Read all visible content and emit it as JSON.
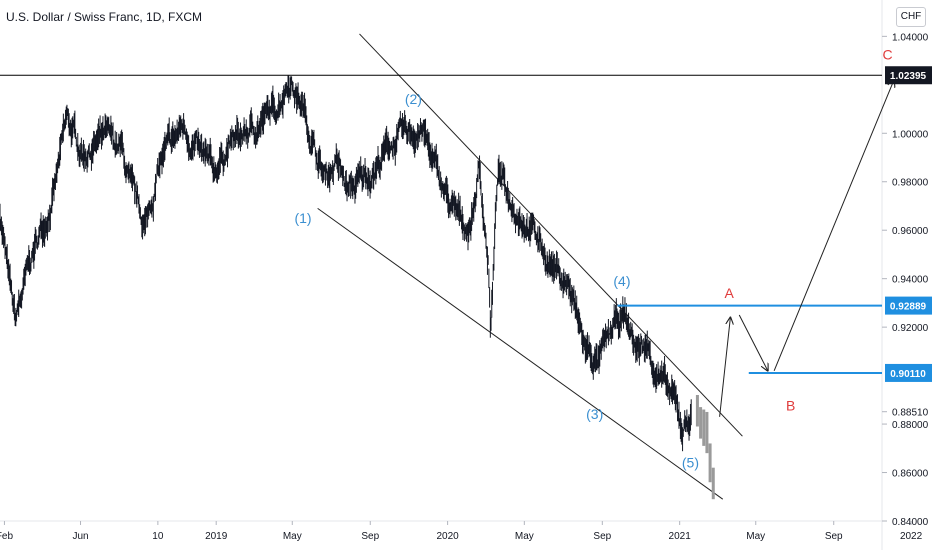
{
  "header": {
    "symbol_title": "U.S. Dollar / Swiss Franc, 1D, FXCM",
    "currency_button": "CHF"
  },
  "colors": {
    "price_bars": "#131722",
    "projection_bars": "#9a9a9a",
    "wave_labels": "#3b8fd0",
    "abc_labels": "#e03c3c",
    "blue_levels": "#1f8fe0",
    "resistance_line": "#000000",
    "tag_background": "#131722"
  },
  "chart_data": {
    "type": "line",
    "symbol": "USDCHF",
    "timeframe": "1D",
    "x_tick_labels": [
      "Feb",
      "Jun",
      "10",
      "2019",
      "May",
      "Sep",
      "2020",
      "May",
      "Sep",
      "2021",
      "May",
      "Sep",
      "2022"
    ],
    "y_tick_labels": [
      "1.04000",
      "1.00000",
      "0.98000",
      "0.96000",
      "0.94000",
      "0.92000",
      "0.88510",
      "0.88000",
      "0.86000",
      "0.84000"
    ],
    "y_range": [
      0.84,
      1.055
    ],
    "price_path": [
      [
        "2018-01-25",
        0.968
      ],
      [
        "2018-02-10",
        0.935
      ],
      [
        "2018-02-18",
        0.922
      ],
      [
        "2018-03-15",
        0.948
      ],
      [
        "2018-04-20",
        0.975
      ],
      [
        "2018-05-10",
        1.005
      ],
      [
        "2018-06-05",
        0.992
      ],
      [
        "2018-07-10",
        0.998
      ],
      [
        "2018-08-05",
        0.993
      ],
      [
        "2018-08-20",
        0.975
      ],
      [
        "2018-09-12",
        0.962
      ],
      [
        "2018-10-05",
        0.988
      ],
      [
        "2018-11-10",
        1.003
      ],
      [
        "2018-12-08",
        0.99
      ],
      [
        "2018-12-28",
        0.984
      ],
      [
        "2019-01-20",
        0.995
      ],
      [
        "2019-02-25",
        1.001
      ],
      [
        "2019-04-05",
        1.01
      ],
      [
        "2019-04-26",
        1.0235
      ],
      [
        "2019-05-20",
        1.009
      ],
      [
        "2019-06-05",
        0.994
      ],
      [
        "2019-06-20",
        0.982
      ],
      [
        "2019-07-10",
        0.988
      ],
      [
        "2019-07-28",
        0.976
      ],
      [
        "2019-08-15",
        0.98
      ],
      [
        "2019-09-10",
        0.986
      ],
      [
        "2019-10-01",
        0.995
      ],
      [
        "2019-10-25",
        0.999
      ],
      [
        "2019-11-22",
        1.002
      ],
      [
        "2019-12-10",
        0.987
      ],
      [
        "2020-01-10",
        0.967
      ],
      [
        "2020-02-05",
        0.961
      ],
      [
        "2020-02-20",
        0.985
      ],
      [
        "2020-03-05",
        0.948
      ],
      [
        "2020-03-09",
        0.918
      ],
      [
        "2020-03-20",
        0.984
      ],
      [
        "2020-04-10",
        0.972
      ],
      [
        "2020-05-10",
        0.962
      ],
      [
        "2020-06-10",
        0.947
      ],
      [
        "2020-07-10",
        0.937
      ],
      [
        "2020-08-05",
        0.911
      ],
      [
        "2020-08-25",
        0.905
      ],
      [
        "2020-09-20",
        0.92
      ],
      [
        "2020-10-05",
        0.925
      ],
      [
        "2020-10-25",
        0.911
      ],
      [
        "2020-11-10",
        0.912
      ],
      [
        "2020-12-05",
        0.897
      ],
      [
        "2020-12-25",
        0.888
      ],
      [
        "2021-01-06",
        0.878
      ],
      [
        "2021-01-20",
        0.885
      ]
    ],
    "projection_bars": [
      [
        "2021-01-29",
        0.892,
        0.879
      ],
      [
        "2021-02-03",
        0.887,
        0.874
      ],
      [
        "2021-02-08",
        0.886,
        0.871
      ],
      [
        "2021-02-13",
        0.885,
        0.868
      ],
      [
        "2021-02-18",
        0.872,
        0.856
      ],
      [
        "2021-02-23",
        0.862,
        0.849
      ]
    ],
    "resistance_level": {
      "value": 1.02395,
      "label": "1.02395"
    },
    "levels": [
      {
        "value": 0.92889,
        "label": "0.92889",
        "from": "2020-09-25"
      },
      {
        "value": 0.9011,
        "label": "0.90110",
        "from": "2021-04-20"
      }
    ],
    "channel_lines": [
      {
        "from": [
          "2019-06-10",
          0.969
        ],
        "to": [
          "2021-03-10",
          0.849
        ]
      },
      {
        "from": [
          "2019-08-15",
          1.041
        ],
        "to": [
          "2021-04-10",
          0.875
        ]
      }
    ],
    "wave_labels": [
      {
        "text": "(1)",
        "at": [
          "2019-05-18",
          0.963
        ]
      },
      {
        "text": "(2)",
        "at": [
          "2019-11-08",
          1.012
        ]
      },
      {
        "text": "(3)",
        "at": [
          "2020-08-20",
          0.882
        ]
      },
      {
        "text": "(4)",
        "at": [
          "2020-10-02",
          0.937
        ]
      },
      {
        "text": "(5)",
        "at": [
          "2021-01-18",
          0.862
        ]
      }
    ],
    "abc_labels": [
      {
        "text": "A",
        "at": [
          "2021-03-20",
          0.932
        ]
      },
      {
        "text": "B",
        "at": [
          "2021-06-25",
          0.8855
        ]
      },
      {
        "text": "C",
        "at": [
          "2021-11-25",
          1.0305
        ]
      }
    ],
    "arrows": [
      {
        "from": [
          "2021-03-05",
          0.883
        ],
        "to": [
          "2021-03-22",
          0.924
        ]
      },
      {
        "from": [
          "2021-04-05",
          0.925
        ],
        "to": [
          "2021-05-20",
          0.902
        ]
      },
      {
        "from": [
          "2021-05-30",
          0.902
        ],
        "to": [
          "2021-12-05",
          1.022
        ]
      }
    ],
    "grid": false
  }
}
